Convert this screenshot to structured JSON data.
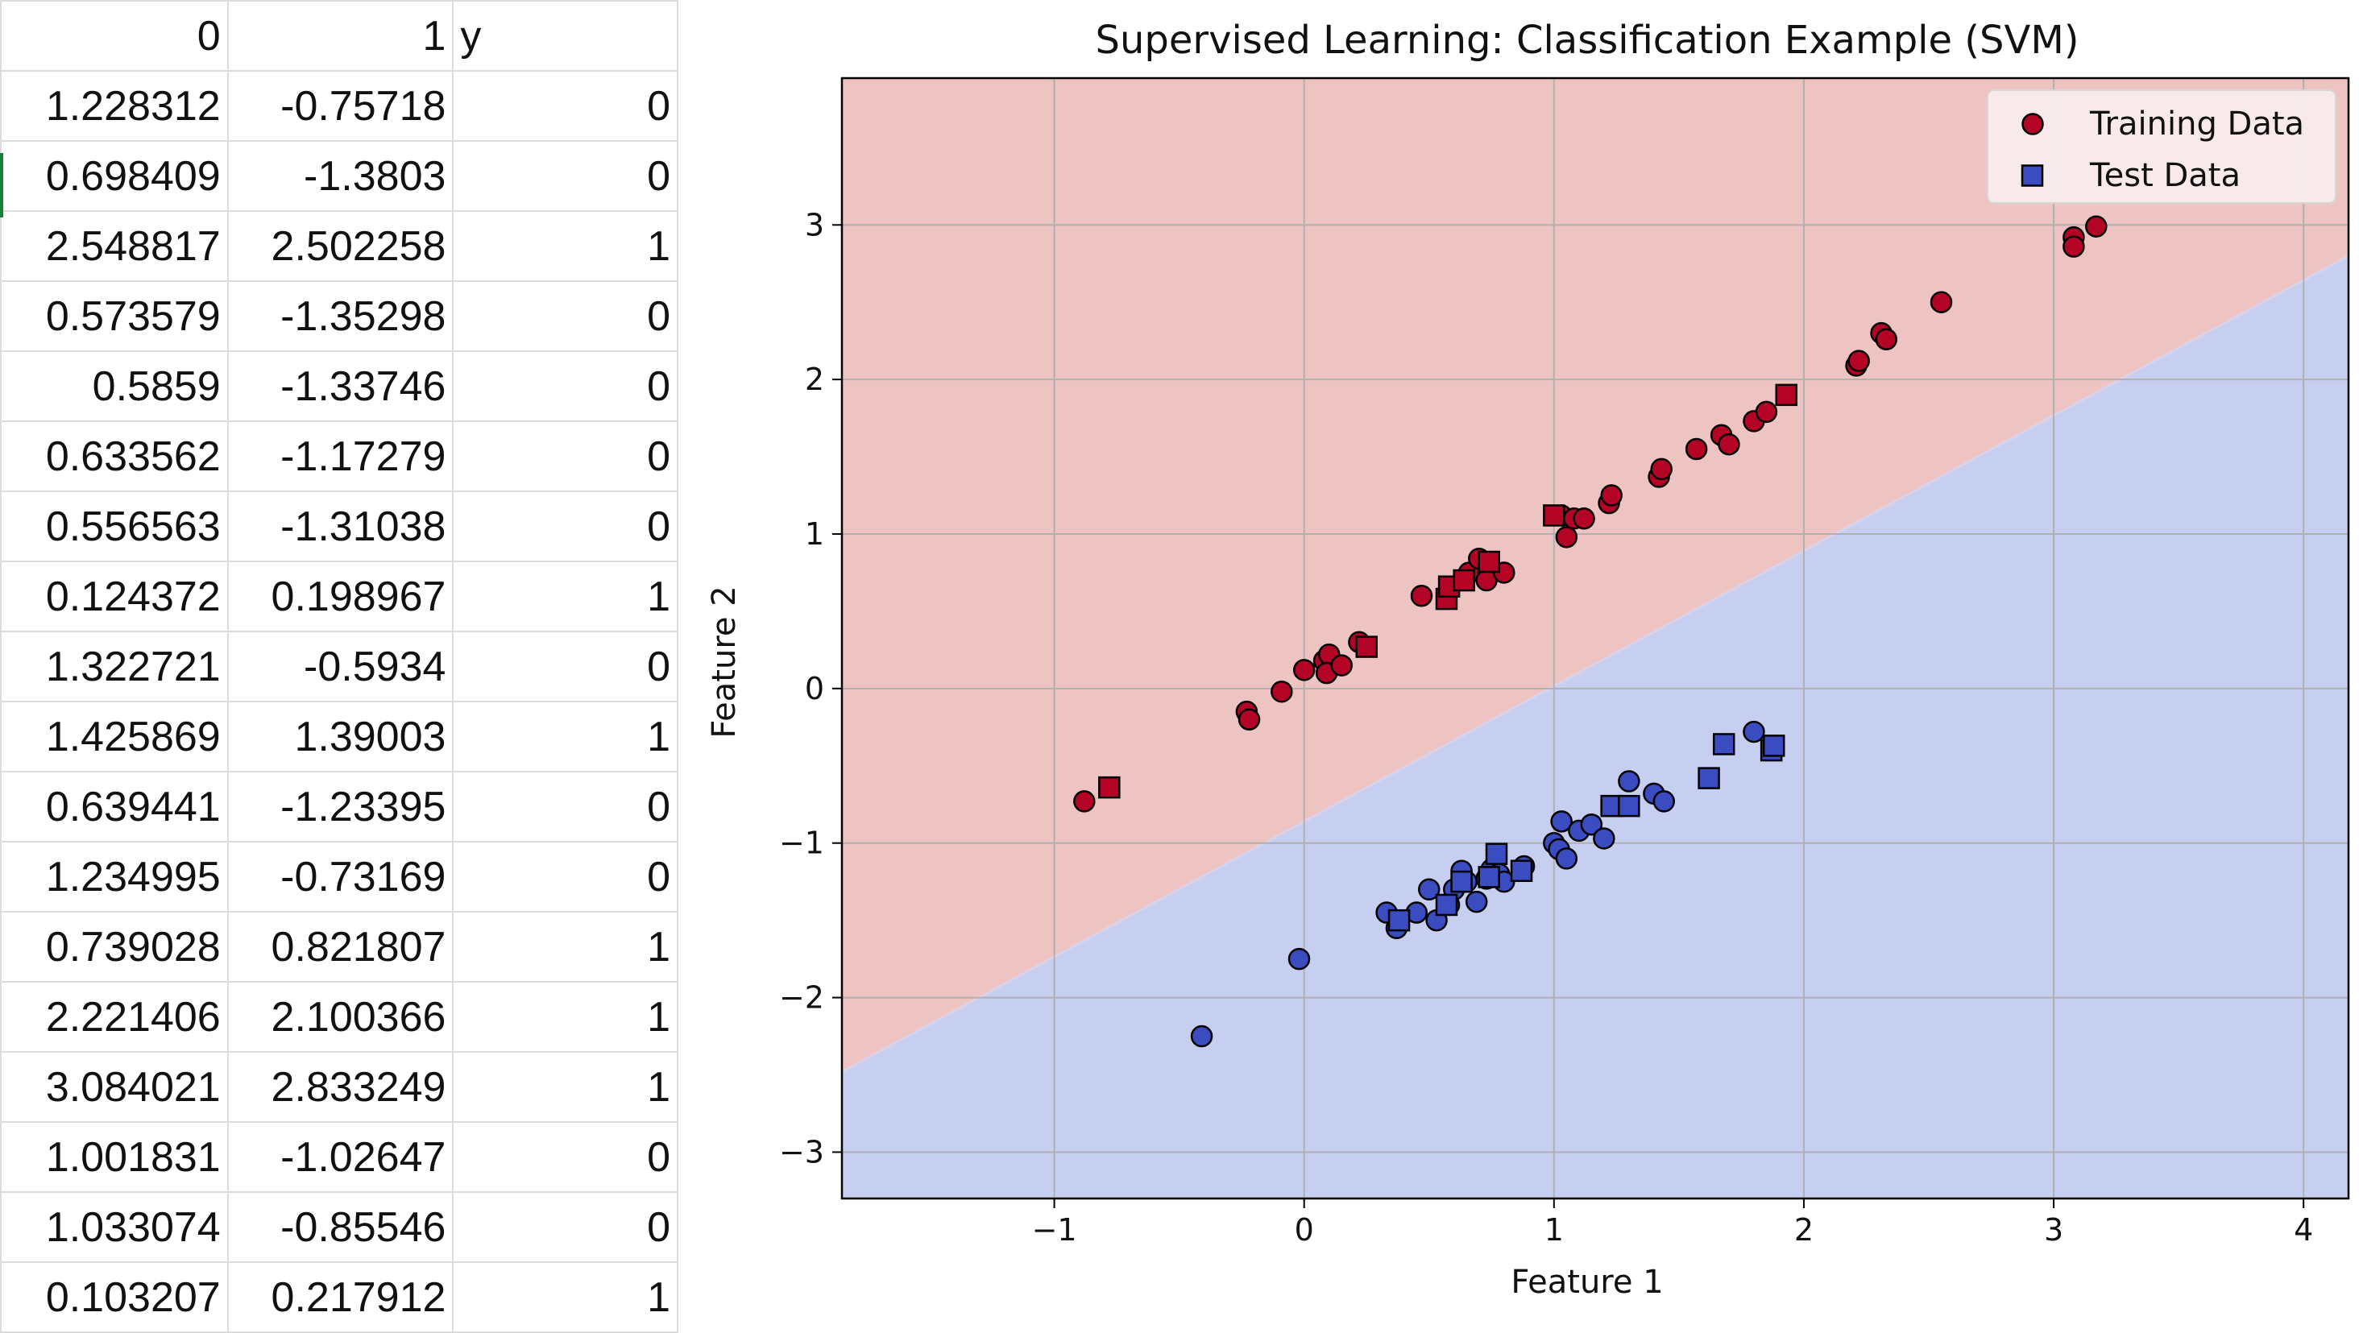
{
  "sheet": {
    "headers": [
      "0",
      "1",
      "y"
    ],
    "rows": [
      [
        "1.228312",
        "-0.75718",
        "0"
      ],
      [
        "0.698409",
        "-1.3803",
        "0"
      ],
      [
        "2.548817",
        "2.502258",
        "1"
      ],
      [
        "0.573579",
        "-1.35298",
        "0"
      ],
      [
        "0.5859",
        "-1.33746",
        "0"
      ],
      [
        "0.633562",
        "-1.17279",
        "0"
      ],
      [
        "0.556563",
        "-1.31038",
        "0"
      ],
      [
        "0.124372",
        "0.198967",
        "1"
      ],
      [
        "1.322721",
        "-0.5934",
        "0"
      ],
      [
        "1.425869",
        "1.39003",
        "1"
      ],
      [
        "0.639441",
        "-1.23395",
        "0"
      ],
      [
        "1.234995",
        "-0.73169",
        "0"
      ],
      [
        "0.739028",
        "0.821807",
        "1"
      ],
      [
        "2.221406",
        "2.100366",
        "1"
      ],
      [
        "3.084021",
        "2.833249",
        "1"
      ],
      [
        "1.001831",
        "-1.02647",
        "0"
      ],
      [
        "1.033074",
        "-0.85546",
        "0"
      ],
      [
        "0.103207",
        "0.217912",
        "1"
      ]
    ]
  },
  "chart_data": {
    "type": "scatter",
    "title": "Supervised Learning: Classification Example (SVM)",
    "xlabel": "Feature 1",
    "ylabel": "Feature 2",
    "xlim": [
      -1.85,
      4.18
    ],
    "ylim": [
      -3.3,
      3.95
    ],
    "xticks": [
      -1,
      0,
      1,
      2,
      3,
      4
    ],
    "yticks": [
      -3,
      -2,
      -1,
      0,
      1,
      2,
      3
    ],
    "xtick_labels": [
      "−1",
      "0",
      "1",
      "2",
      "3",
      "4"
    ],
    "ytick_labels": [
      "−3",
      "−2",
      "−1",
      "0",
      "1",
      "2",
      "3"
    ],
    "grid": true,
    "legend_position": "top-right",
    "class_colors": {
      "0": "#3b4cc0",
      "1": "#b40426"
    },
    "region_colors": {
      "0": "#c6cff0",
      "1": "#eec4c3"
    },
    "decision_boundary": [
      [
        -1.85,
        -2.48
      ],
      [
        4.18,
        2.8
      ]
    ],
    "series": [
      {
        "name": "Training Data",
        "marker": "circle",
        "points": [
          [
            -0.88,
            -0.73,
            1
          ],
          [
            -0.23,
            -0.15,
            1
          ],
          [
            -0.22,
            -0.2,
            1
          ],
          [
            -0.09,
            -0.02,
            1
          ],
          [
            0.0,
            0.12,
            1
          ],
          [
            0.08,
            0.18,
            1
          ],
          [
            0.1,
            0.22,
            1
          ],
          [
            0.09,
            0.1,
            1
          ],
          [
            0.15,
            0.15,
            1
          ],
          [
            0.22,
            0.3,
            1
          ],
          [
            0.47,
            0.6,
            1
          ],
          [
            0.66,
            0.75,
            1
          ],
          [
            0.7,
            0.84,
            1
          ],
          [
            0.73,
            0.7,
            1
          ],
          [
            0.8,
            0.75,
            1
          ],
          [
            1.03,
            1.12,
            1
          ],
          [
            1.05,
            0.98,
            1
          ],
          [
            1.08,
            1.1,
            1
          ],
          [
            1.12,
            1.1,
            1
          ],
          [
            1.22,
            1.2,
            1
          ],
          [
            1.23,
            1.25,
            1
          ],
          [
            1.42,
            1.37,
            1
          ],
          [
            1.43,
            1.42,
            1
          ],
          [
            1.57,
            1.55,
            1
          ],
          [
            1.67,
            1.64,
            1
          ],
          [
            1.7,
            1.58,
            1
          ],
          [
            1.8,
            1.73,
            1
          ],
          [
            1.85,
            1.79,
            1
          ],
          [
            2.21,
            2.09,
            1
          ],
          [
            2.22,
            2.12,
            1
          ],
          [
            2.31,
            2.3,
            1
          ],
          [
            2.33,
            2.26,
            1
          ],
          [
            2.55,
            2.5,
            1
          ],
          [
            3.08,
            2.92,
            1
          ],
          [
            3.08,
            2.86,
            1
          ],
          [
            3.17,
            2.99,
            1
          ],
          [
            -0.41,
            -2.25,
            0
          ],
          [
            -0.02,
            -1.75,
            0
          ],
          [
            0.33,
            -1.45,
            0
          ],
          [
            0.37,
            -1.55,
            0
          ],
          [
            0.45,
            -1.45,
            0
          ],
          [
            0.5,
            -1.3,
            0
          ],
          [
            0.53,
            -1.5,
            0
          ],
          [
            0.58,
            -1.4,
            0
          ],
          [
            0.6,
            -1.3,
            0
          ],
          [
            0.63,
            -1.18,
            0
          ],
          [
            0.65,
            -1.25,
            0
          ],
          [
            0.69,
            -1.38,
            0
          ],
          [
            0.73,
            -1.23,
            0
          ],
          [
            0.75,
            -1.17,
            0
          ],
          [
            0.78,
            -1.2,
            0
          ],
          [
            0.8,
            -1.25,
            0
          ],
          [
            0.88,
            -1.15,
            0
          ],
          [
            1.0,
            -1.0,
            0
          ],
          [
            1.03,
            -0.86,
            0
          ],
          [
            1.02,
            -1.04,
            0
          ],
          [
            1.05,
            -1.1,
            0
          ],
          [
            1.1,
            -0.92,
            0
          ],
          [
            1.15,
            -0.88,
            0
          ],
          [
            1.2,
            -0.97,
            0
          ],
          [
            1.23,
            -0.76,
            0
          ],
          [
            1.3,
            -0.6,
            0
          ],
          [
            1.4,
            -0.68,
            0
          ],
          [
            1.44,
            -0.73,
            0
          ],
          [
            1.8,
            -0.28,
            0
          ]
        ]
      },
      {
        "name": "Test Data",
        "marker": "square",
        "points": [
          [
            -0.78,
            -0.64,
            1
          ],
          [
            0.25,
            0.27,
            1
          ],
          [
            0.57,
            0.58,
            1
          ],
          [
            0.58,
            0.66,
            1
          ],
          [
            0.64,
            0.7,
            1
          ],
          [
            0.74,
            0.82,
            1
          ],
          [
            1.0,
            1.12,
            1
          ],
          [
            1.93,
            1.9,
            1
          ],
          [
            0.38,
            -1.5,
            0
          ],
          [
            0.57,
            -1.4,
            0
          ],
          [
            0.63,
            -1.25,
            0
          ],
          [
            0.74,
            -1.22,
            0
          ],
          [
            0.77,
            -1.07,
            0
          ],
          [
            0.87,
            -1.18,
            0
          ],
          [
            1.23,
            -0.76,
            0
          ],
          [
            1.3,
            -0.76,
            0
          ],
          [
            1.62,
            -0.58,
            0
          ],
          [
            1.68,
            -0.36,
            0
          ],
          [
            1.87,
            -0.4,
            0
          ],
          [
            1.88,
            -0.37,
            0
          ]
        ]
      }
    ]
  }
}
